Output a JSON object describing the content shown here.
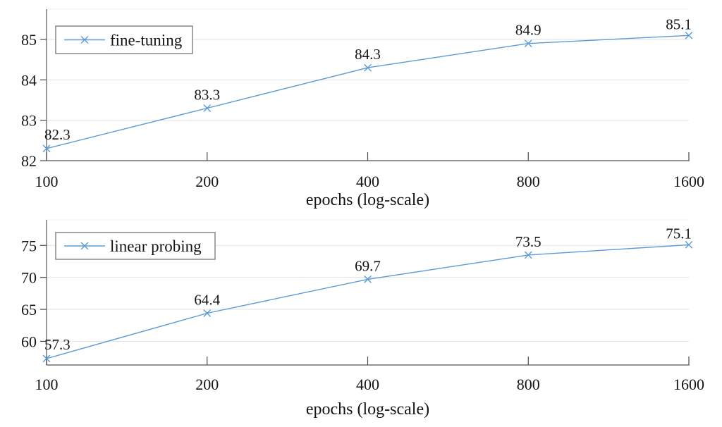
{
  "figure_name": "epochs vs accuracy (fine-tuning and linear probing)",
  "colors": {
    "line": "#5b9bd5",
    "grid": "#e2e2e2",
    "axis": "#707070",
    "axis_faint": "#efefef",
    "tick": "#4a4a4a",
    "text": "#141414",
    "legend_border": "#7f7f7f",
    "background": "#ffffff"
  },
  "chart_data": [
    {
      "type": "line",
      "x": [
        100,
        200,
        400,
        800,
        1600
      ],
      "x_scale": "log",
      "xticks": [
        "100",
        "200",
        "400",
        "800",
        "1600"
      ],
      "xlabel": "epochs (log-scale)",
      "yticks": [
        82,
        83,
        84,
        85
      ],
      "ylim": [
        82,
        85.75
      ],
      "grid": "horizontal",
      "legend": {
        "label": "fine-tuning",
        "marker": "x",
        "position": "top-left"
      },
      "series": [
        {
          "name": "fine-tuning",
          "marker": "x",
          "color": "#5b9bd5",
          "values": [
            82.3,
            83.3,
            84.3,
            84.9,
            85.1
          ],
          "point_labels": [
            "82.3",
            "83.3",
            "84.3",
            "84.9",
            "85.1"
          ]
        }
      ]
    },
    {
      "type": "line",
      "x": [
        100,
        200,
        400,
        800,
        1600
      ],
      "x_scale": "log",
      "xticks": [
        "100",
        "200",
        "400",
        "800",
        "1600"
      ],
      "xlabel": "epochs (log-scale)",
      "yticks": [
        60,
        65,
        70,
        75
      ],
      "ylim": [
        56.3,
        79
      ],
      "grid": "horizontal",
      "legend": {
        "label": "linear probing",
        "marker": "x",
        "position": "top-left"
      },
      "series": [
        {
          "name": "linear probing",
          "marker": "x",
          "color": "#5b9bd5",
          "values": [
            57.3,
            64.4,
            69.7,
            73.5,
            75.1
          ],
          "point_labels": [
            "57.3",
            "64.4",
            "69.7",
            "73.5",
            "75.1"
          ]
        }
      ]
    }
  ]
}
